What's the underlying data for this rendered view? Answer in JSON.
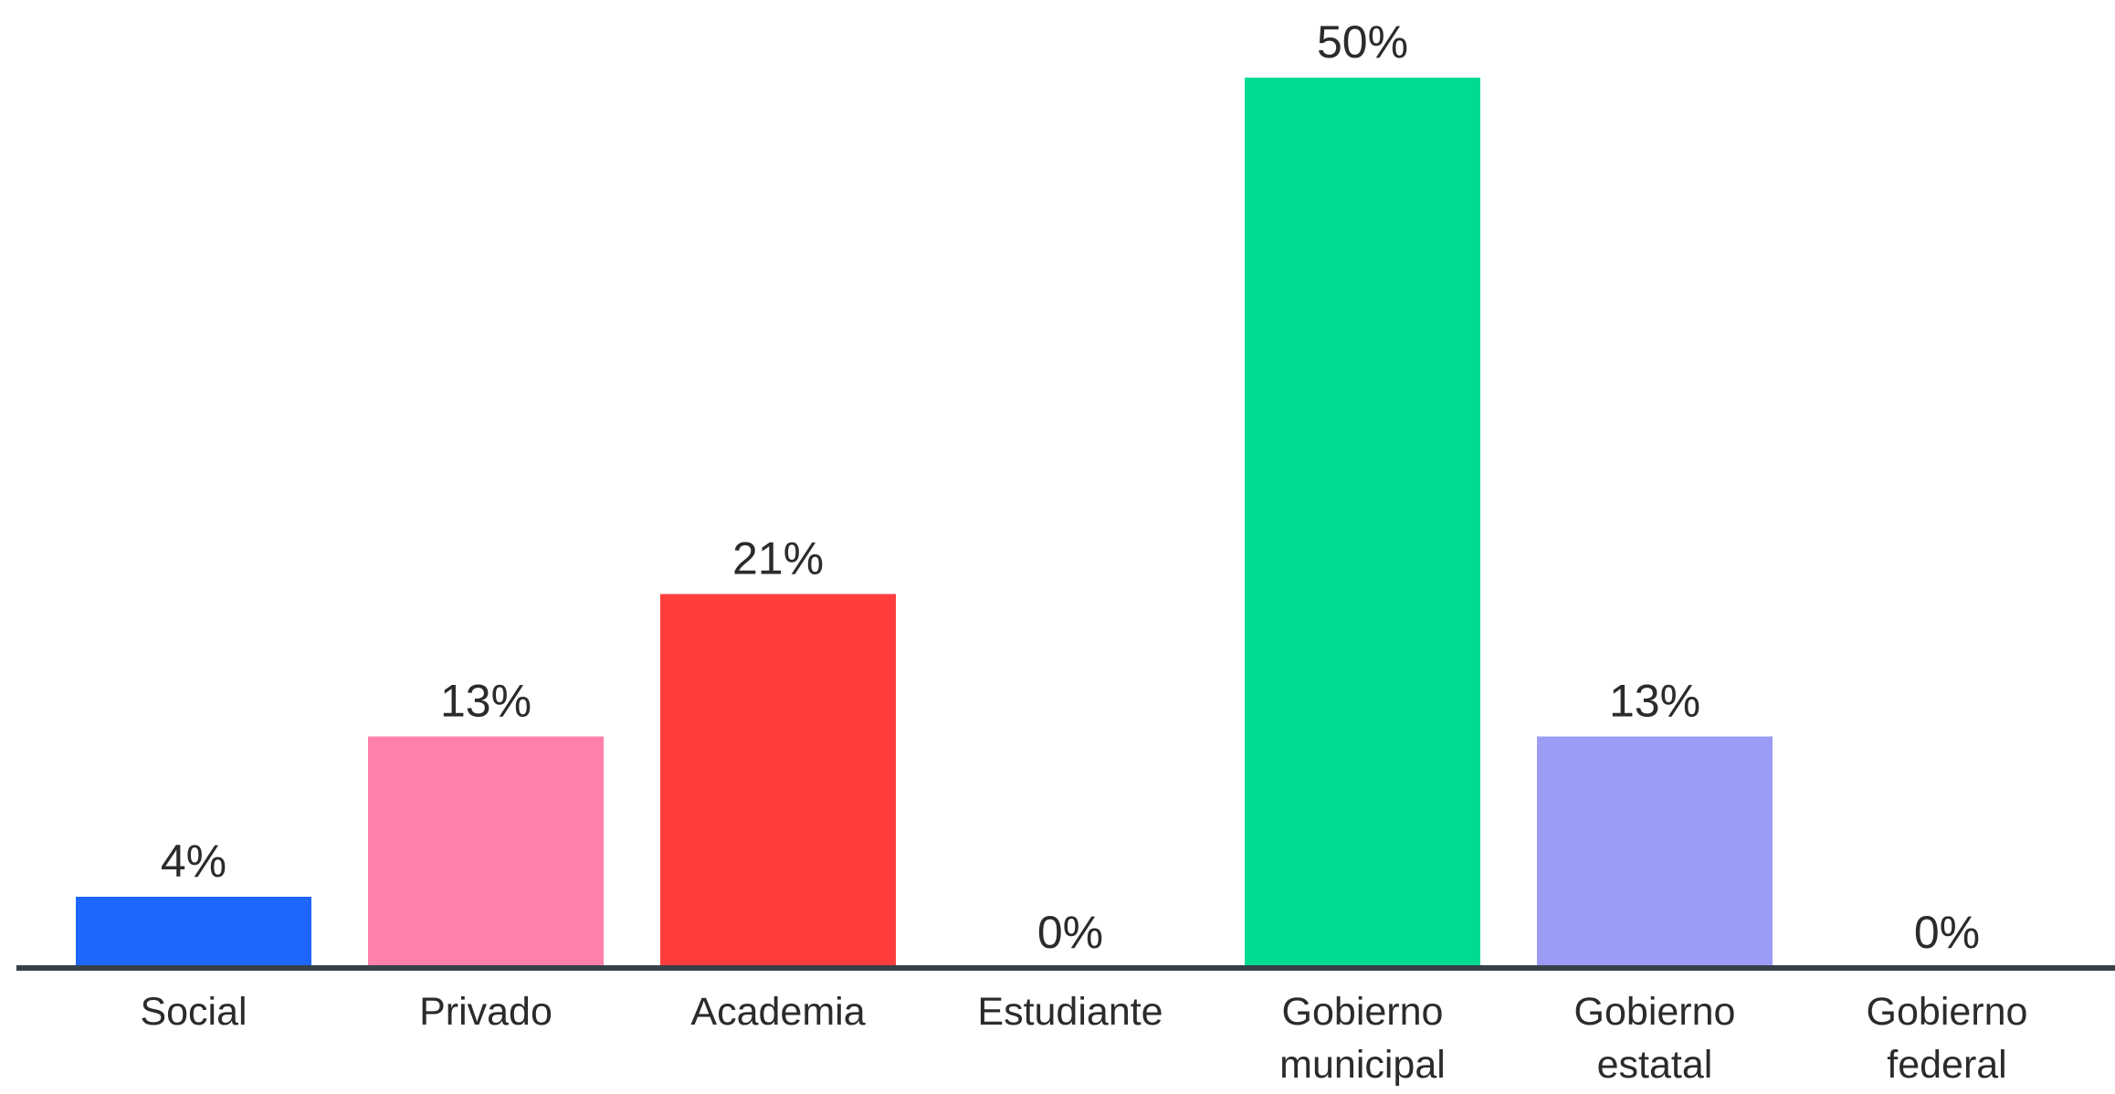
{
  "chart_data": {
    "type": "bar",
    "categories": [
      [
        "Social"
      ],
      [
        "Privado"
      ],
      [
        "Academia"
      ],
      [
        "Estudiante"
      ],
      [
        "Gobierno",
        "municipal"
      ],
      [
        "Gobierno",
        "estatal"
      ],
      [
        "Gobierno",
        "federal"
      ]
    ],
    "values": [
      4,
      13,
      21,
      0,
      50,
      13,
      0
    ],
    "value_labels": [
      "4%",
      "13%",
      "21%",
      "0%",
      "50%",
      "13%",
      "0%"
    ],
    "colors": [
      "#1f66ff",
      "#ff80aa",
      "#ff3d3d",
      "#cccccc",
      "#00db92",
      "#9b9cf4",
      "#cccccc"
    ],
    "axis_color": "#36404a",
    "ylim": [
      0,
      50
    ],
    "grid": false,
    "legend": "none",
    "title": "",
    "xlabel": "",
    "ylabel": ""
  }
}
